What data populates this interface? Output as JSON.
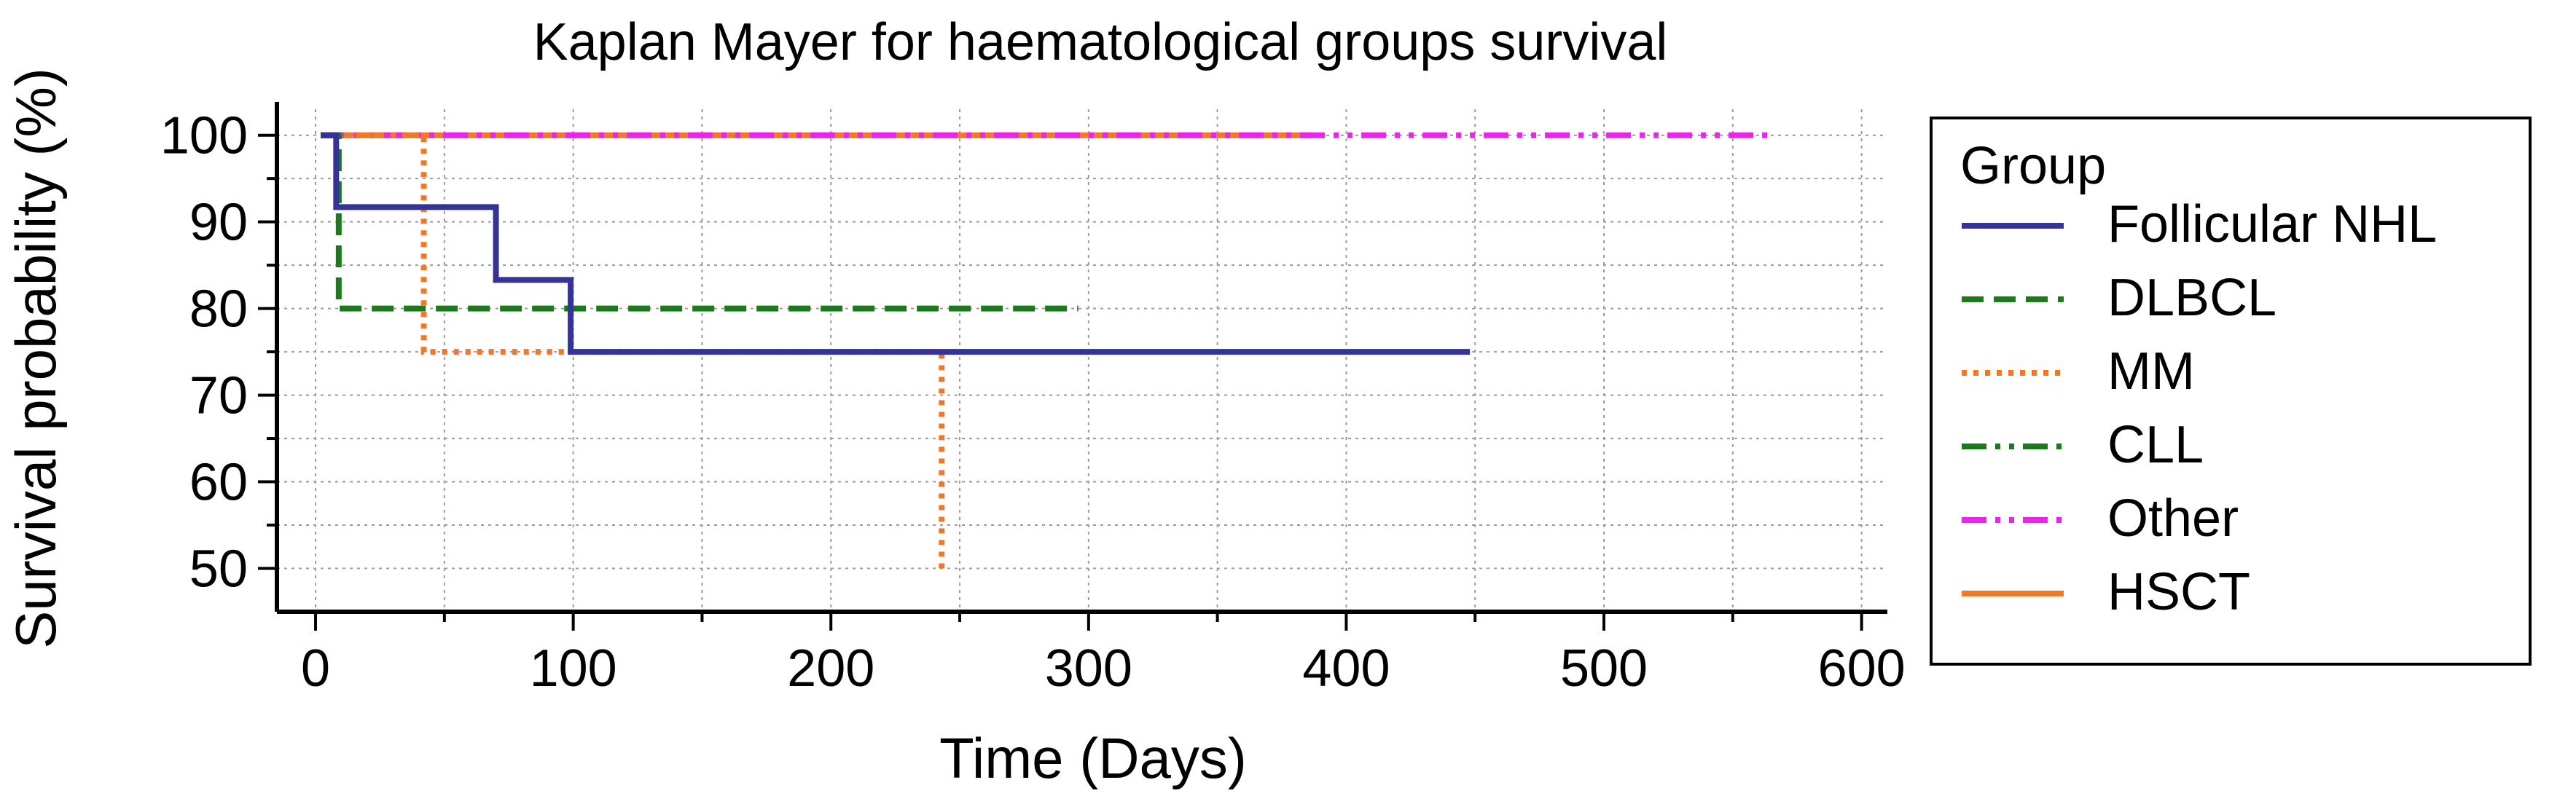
{
  "chart_data": {
    "type": "line",
    "title": "Kaplan Mayer for haematological groups survival",
    "xlabel": "Time (Days)",
    "ylabel": "Survival probability (%)",
    "xlim": [
      -15,
      610
    ],
    "ylim": [
      45,
      103
    ],
    "xticks": [
      0,
      100,
      200,
      300,
      400,
      500,
      600
    ],
    "yticks": [
      50,
      60,
      70,
      80,
      90,
      100
    ],
    "x_minor_step": 50,
    "y_minor_step": 5,
    "grid": true,
    "legend": {
      "title": "Group",
      "position": "right"
    },
    "series": [
      {
        "name": "Follicular NHL",
        "color": "#333399",
        "dash": "solid",
        "steps": [
          [
            2,
            100
          ],
          [
            8,
            91.7
          ],
          [
            70,
            83.3
          ],
          [
            99,
            75
          ],
          [
            448,
            75
          ]
        ]
      },
      {
        "name": "DLBCL",
        "color": "#1b7a1b",
        "dash": "dashed",
        "steps": [
          [
            2,
            100
          ],
          [
            9,
            80
          ],
          [
            296,
            80
          ]
        ]
      },
      {
        "name": "MM",
        "color": "#f07828",
        "dash": "dotted",
        "steps": [
          [
            2,
            100
          ],
          [
            42,
            75
          ],
          [
            243,
            50
          ]
        ]
      },
      {
        "name": "CLL",
        "color": "#1b7a1b",
        "dash": "dashdotdot",
        "steps": [
          [
            2,
            100
          ],
          [
            7,
            100
          ]
        ]
      },
      {
        "name": "Other",
        "color": "#ee22ee",
        "dash": "dashdotdot",
        "steps": [
          [
            2,
            100
          ],
          [
            565,
            100
          ]
        ]
      },
      {
        "name": "HSCT",
        "color": "#f07828",
        "dash": "solid",
        "steps": [
          [
            2,
            100
          ],
          [
            387,
            100
          ]
        ]
      }
    ]
  }
}
